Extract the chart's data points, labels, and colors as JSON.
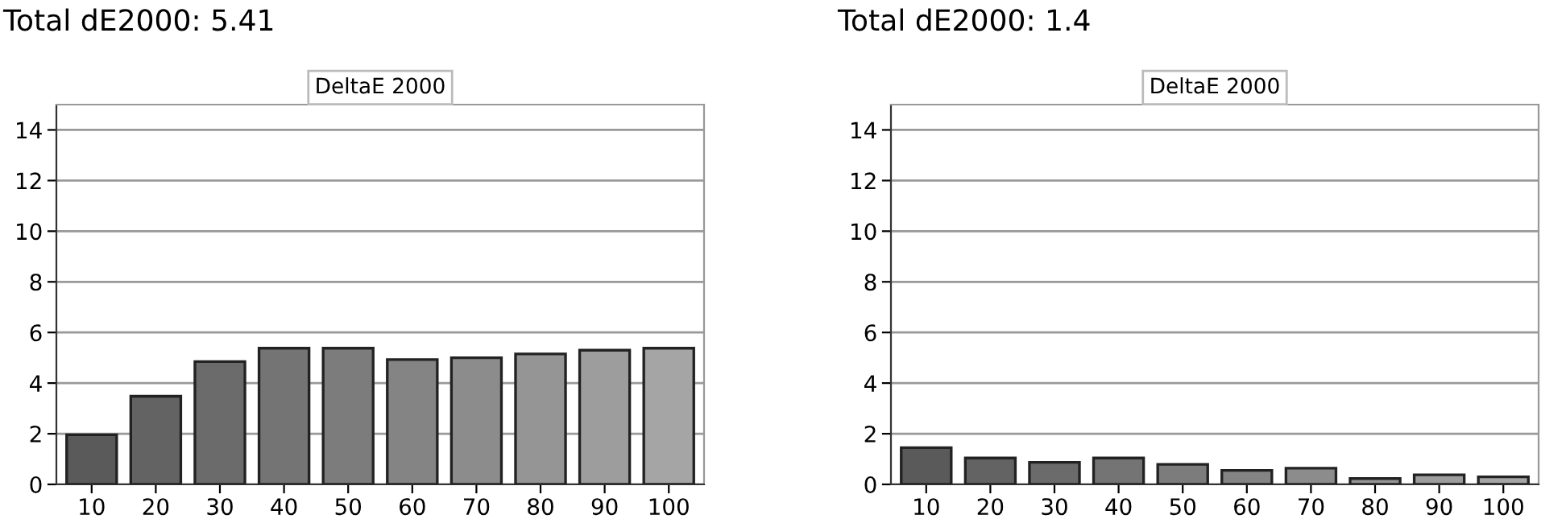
{
  "chart_data": [
    {
      "type": "bar",
      "title": "Total dE2000: 5.41",
      "subtitle": "DeltaE 2000",
      "categories": [
        "10",
        "20",
        "30",
        "40",
        "50",
        "60",
        "70",
        "80",
        "90",
        "100"
      ],
      "values": [
        1.96,
        3.48,
        4.85,
        5.38,
        5.38,
        4.93,
        5.0,
        5.15,
        5.3,
        5.38
      ],
      "colors": [
        "#5a5a5a",
        "#636363",
        "#6b6b6b",
        "#747474",
        "#7c7c7c",
        "#848484",
        "#8c8c8c",
        "#959595",
        "#9d9d9d",
        "#a5a5a5"
      ],
      "ylim": [
        0,
        15
      ],
      "yticks": [
        0,
        2,
        4,
        6,
        8,
        10,
        12,
        14
      ],
      "grid": "y"
    },
    {
      "type": "bar",
      "title": "Total dE2000: 1.4",
      "subtitle": "DeltaE 2000",
      "categories": [
        "10",
        "20",
        "30",
        "40",
        "50",
        "60",
        "70",
        "80",
        "90",
        "100"
      ],
      "values": [
        1.45,
        1.04,
        0.87,
        1.04,
        0.79,
        0.55,
        0.64,
        0.23,
        0.38,
        0.3
      ],
      "colors": [
        "#5a5a5a",
        "#636363",
        "#6b6b6b",
        "#747474",
        "#7c7c7c",
        "#848484",
        "#8c8c8c",
        "#959595",
        "#9d9d9d",
        "#a5a5a5"
      ],
      "ylim": [
        0,
        15
      ],
      "yticks": [
        0,
        2,
        4,
        6,
        8,
        10,
        12,
        14
      ],
      "grid": "y"
    }
  ]
}
